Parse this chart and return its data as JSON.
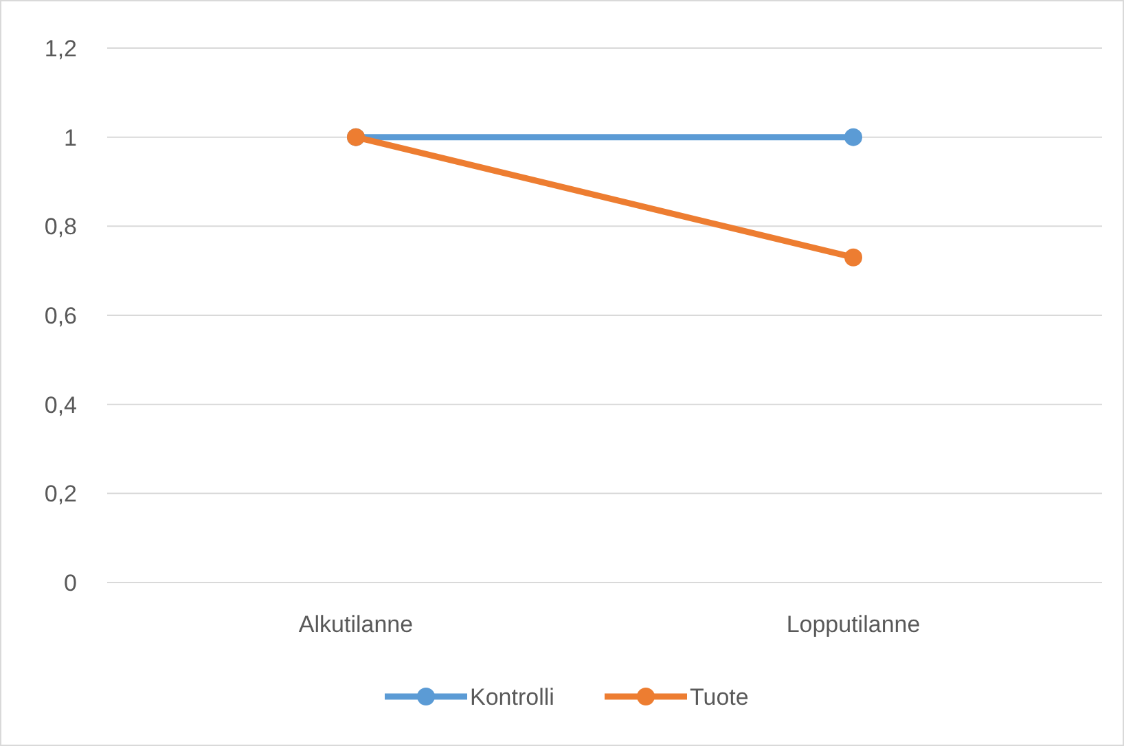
{
  "chart_data": {
    "type": "line",
    "categories": [
      "Alkutilanne",
      "Lopputilanne"
    ],
    "series": [
      {
        "name": "Kontrolli",
        "color": "#5b9bd5",
        "values": [
          1,
          1
        ]
      },
      {
        "name": "Tuote",
        "color": "#ed7d31",
        "values": [
          1,
          0.73
        ]
      }
    ],
    "ylim": [
      0,
      1.2
    ],
    "yticks": [
      0,
      {
        "value": 0.2,
        "label": "0,2"
      },
      {
        "value": 0.4,
        "label": "0,4"
      },
      {
        "value": 0.6,
        "label": "0,6"
      },
      {
        "value": 0.8,
        "label": "0,8"
      },
      1,
      {
        "value": 1.2,
        "label": "1,2"
      }
    ],
    "grid": "y",
    "legend": "bottom",
    "marker": "circle",
    "line_style": "solid"
  }
}
